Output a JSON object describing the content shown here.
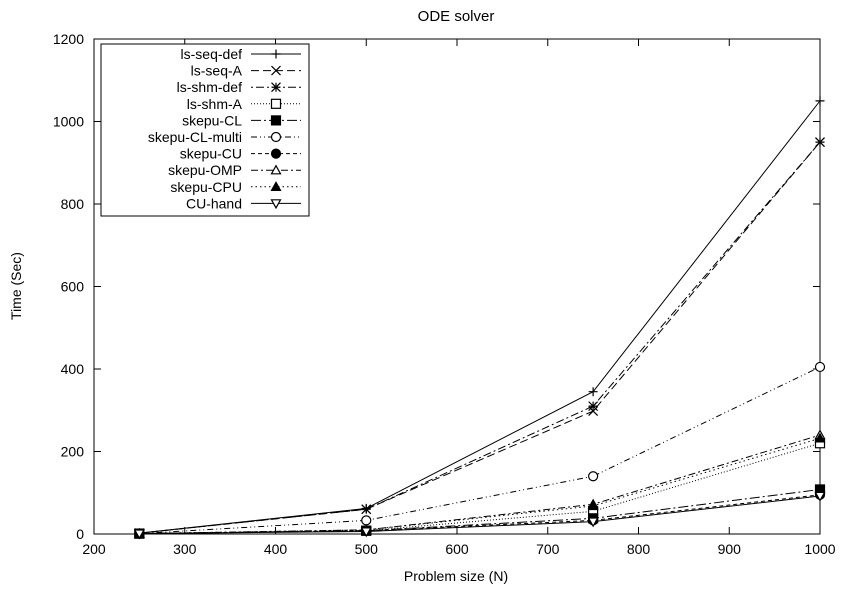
{
  "chart_data": {
    "type": "line",
    "title": "ODE solver",
    "xlabel": "Problem size (N)",
    "ylabel": "Time (Sec)",
    "xlim": [
      200,
      1000
    ],
    "ylim": [
      0,
      1200
    ],
    "xticks": [
      200,
      300,
      400,
      500,
      600,
      700,
      800,
      900,
      1000
    ],
    "yticks": [
      0,
      200,
      400,
      600,
      800,
      1000,
      1200
    ],
    "grid": false,
    "legend_position": "top-left",
    "x": [
      250,
      500,
      750,
      1000
    ],
    "series": [
      {
        "name": "ls-seq-def",
        "values": [
          2,
          62,
          345,
          1050
        ],
        "marker": "plus",
        "dash": "solid"
      },
      {
        "name": "ls-seq-A",
        "values": [
          2,
          60,
          298,
          950
        ],
        "marker": "cross",
        "dash": "dashed"
      },
      {
        "name": "ls-shm-def",
        "values": [
          2,
          60,
          310,
          950
        ],
        "marker": "star",
        "dash": "dotted-dash"
      },
      {
        "name": "ls-shm-A",
        "values": [
          1,
          8,
          55,
          220
        ],
        "marker": "open-square",
        "dash": "dotted"
      },
      {
        "name": "skepu-CL",
        "values": [
          1,
          8,
          38,
          108
        ],
        "marker": "filled-square",
        "dash": "long-dash-dot"
      },
      {
        "name": "skepu-CL-multi",
        "values": [
          1,
          33,
          140,
          405
        ],
        "marker": "open-circle",
        "dash": "dash-dot-dot"
      },
      {
        "name": "skepu-CU",
        "values": [
          1,
          8,
          33,
          95
        ],
        "marker": "filled-circle",
        "dash": "short-dash"
      },
      {
        "name": "skepu-OMP",
        "values": [
          1,
          10,
          72,
          240
        ],
        "marker": "open-triangle",
        "dash": "dash-dot"
      },
      {
        "name": "skepu-CPU",
        "values": [
          1,
          10,
          68,
          232
        ],
        "marker": "filled-triangle",
        "dash": "dot-fine"
      },
      {
        "name": "CU-hand",
        "values": [
          1,
          6,
          30,
          92
        ],
        "marker": "open-triangle-down",
        "dash": "solid"
      }
    ]
  }
}
